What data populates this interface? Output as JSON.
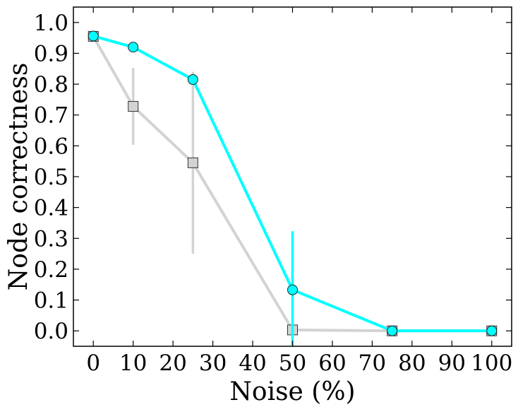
{
  "chart_data": {
    "type": "line",
    "title": "",
    "xlabel": "Noise (%)",
    "ylabel": "Node correctness",
    "xlim": [
      -5,
      105
    ],
    "ylim": [
      -0.05,
      1.05
    ],
    "xticks": [
      0,
      10,
      20,
      30,
      40,
      50,
      60,
      70,
      80,
      90,
      100
    ],
    "yticks": [
      0.0,
      0.1,
      0.2,
      0.3,
      0.4,
      0.5,
      0.6,
      0.7,
      0.8,
      0.9,
      1.0
    ],
    "ytick_labels": [
      "0.0",
      "0.1",
      "0.2",
      "0.3",
      "0.4",
      "0.5",
      "0.6",
      "0.7",
      "0.8",
      "0.9",
      "1.0"
    ],
    "grid": false,
    "legend": "none",
    "series": [
      {
        "marker": "square",
        "color": "#d3d3d3",
        "x": [
          0,
          10,
          25,
          50,
          75,
          100
        ],
        "y": [
          0.955,
          0.728,
          0.545,
          0.003,
          0.0,
          0.0
        ],
        "err": [
          0.0,
          0.125,
          0.295,
          0.0,
          0.0,
          0.0
        ]
      },
      {
        "marker": "circle",
        "color": "#00ffff",
        "x": [
          0,
          10,
          25,
          50,
          75,
          100
        ],
        "y": [
          0.956,
          0.92,
          0.815,
          0.133,
          0.0,
          0.0
        ],
        "err": [
          0.0,
          0.0,
          0.0,
          0.19,
          0.0,
          0.0
        ]
      }
    ]
  }
}
